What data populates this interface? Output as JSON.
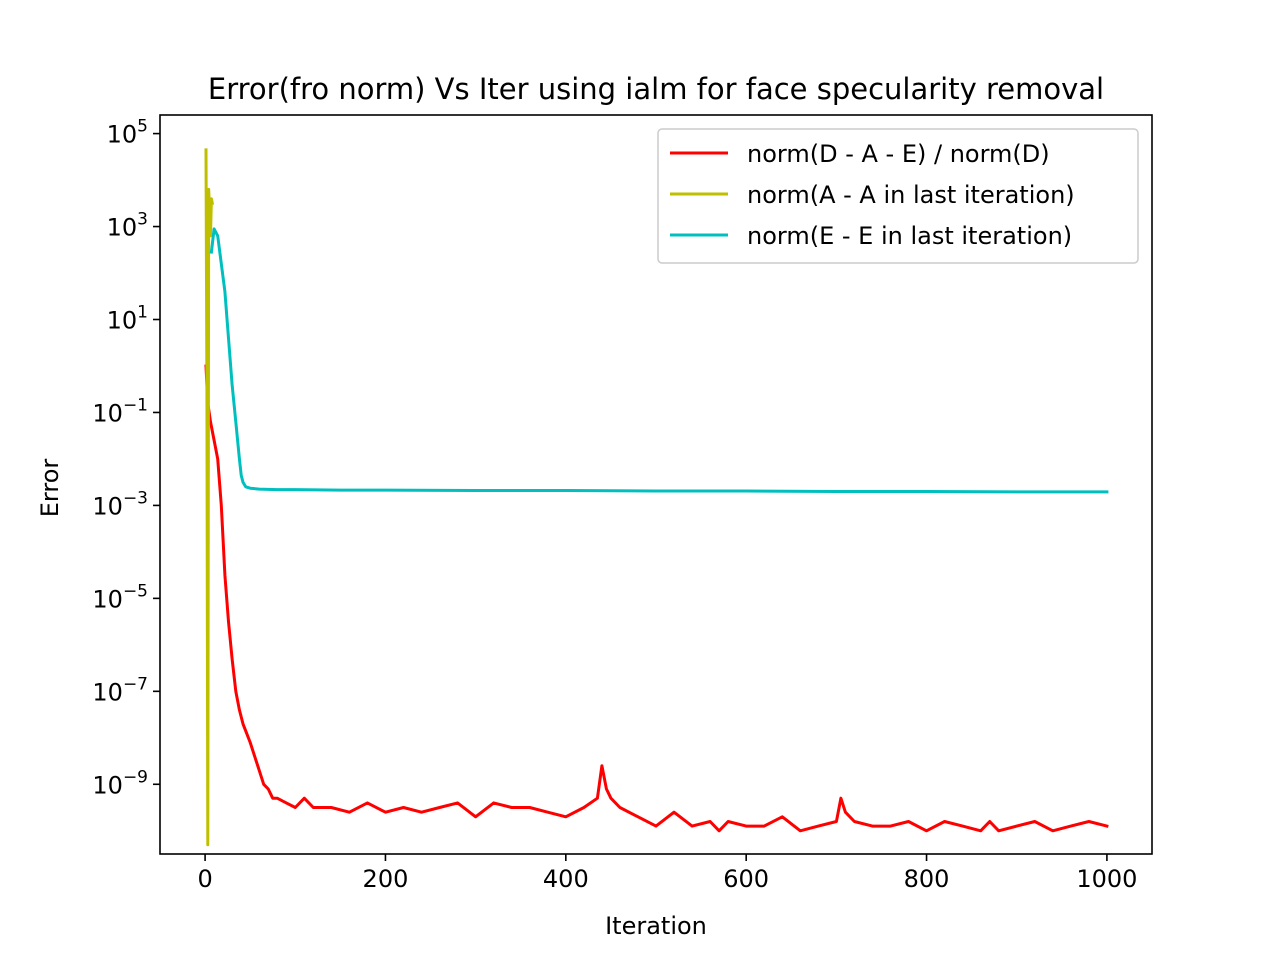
{
  "chart_data": {
    "type": "line",
    "title": "Error(fro norm) Vs Iter using ialm for face specularity removal",
    "xlabel": "Iteration",
    "ylabel": "Error",
    "xlim": [
      -50,
      1050
    ],
    "ylim_log10": [
      -10.5,
      5.4
    ],
    "yscale": "log",
    "x_ticks": [
      0,
      200,
      400,
      600,
      800,
      1000
    ],
    "y_ticks": [
      {
        "base": "10",
        "exp": "5",
        "value": 5
      },
      {
        "base": "10",
        "exp": "3",
        "value": 3
      },
      {
        "base": "10",
        "exp": "1",
        "value": 1
      },
      {
        "base": "10",
        "exp": "−1",
        "value": -1
      },
      {
        "base": "10",
        "exp": "−3",
        "value": -3
      },
      {
        "base": "10",
        "exp": "−5",
        "value": -5
      },
      {
        "base": "10",
        "exp": "−7",
        "value": -7
      },
      {
        "base": "10",
        "exp": "−9",
        "value": -9
      }
    ],
    "legend_position": "upper-right",
    "series": [
      {
        "name": "norm(D - A - E) / norm(D)",
        "color": "#ff0000",
        "x": [
          1,
          3,
          6,
          10,
          14,
          18,
          22,
          26,
          30,
          34,
          38,
          42,
          46,
          50,
          55,
          60,
          65,
          70,
          75,
          80,
          90,
          100,
          110,
          120,
          140,
          160,
          180,
          200,
          220,
          240,
          260,
          280,
          300,
          320,
          340,
          360,
          380,
          400,
          420,
          435,
          440,
          445,
          450,
          460,
          480,
          500,
          520,
          540,
          560,
          570,
          580,
          600,
          620,
          640,
          660,
          680,
          700,
          705,
          710,
          720,
          740,
          760,
          780,
          800,
          820,
          840,
          860,
          870,
          880,
          900,
          920,
          940,
          960,
          980,
          1000
        ],
        "log10y": [
          0,
          -0.8,
          -1.2,
          -1.6,
          -2.0,
          -3.0,
          -4.5,
          -5.5,
          -6.3,
          -7.0,
          -7.4,
          -7.7,
          -7.9,
          -8.1,
          -8.4,
          -8.7,
          -9.0,
          -9.1,
          -9.3,
          -9.3,
          -9.4,
          -9.5,
          -9.3,
          -9.5,
          -9.5,
          -9.6,
          -9.4,
          -9.6,
          -9.5,
          -9.6,
          -9.5,
          -9.4,
          -9.7,
          -9.4,
          -9.5,
          -9.5,
          -9.6,
          -9.7,
          -9.5,
          -9.3,
          -8.6,
          -9.1,
          -9.3,
          -9.5,
          -9.7,
          -9.9,
          -9.6,
          -9.9,
          -9.8,
          -10.0,
          -9.8,
          -9.9,
          -9.9,
          -9.7,
          -10.0,
          -9.9,
          -9.8,
          -9.3,
          -9.6,
          -9.8,
          -9.9,
          -9.9,
          -9.8,
          -10.0,
          -9.8,
          -9.9,
          -10.0,
          -9.8,
          -10.0,
          -9.9,
          -9.8,
          -10.0,
          -9.9,
          -9.8,
          -9.9
        ]
      },
      {
        "name": "norm(A - A in last iteration)",
        "color": "#bfbf00",
        "x": [
          1,
          2,
          3,
          4,
          5,
          6,
          7,
          8
        ],
        "log10y": [
          4.65,
          -0.5,
          -10.3,
          3.8,
          3.3,
          2.8,
          3.6,
          3.5
        ]
      },
      {
        "name": "norm(E - E in last iteration)",
        "color": "#00bfbf",
        "x": [
          7,
          10,
          14,
          18,
          22,
          26,
          30,
          34,
          38,
          40,
          42,
          45,
          50,
          60,
          80,
          100,
          150,
          200,
          300,
          400,
          500,
          600,
          700,
          800,
          900,
          1000
        ],
        "log10y": [
          2.45,
          2.95,
          2.8,
          2.2,
          1.6,
          0.6,
          -0.4,
          -1.2,
          -2.0,
          -2.35,
          -2.5,
          -2.6,
          -2.63,
          -2.65,
          -2.66,
          -2.66,
          -2.67,
          -2.67,
          -2.68,
          -2.68,
          -2.69,
          -2.69,
          -2.7,
          -2.7,
          -2.71,
          -2.71
        ]
      }
    ]
  }
}
